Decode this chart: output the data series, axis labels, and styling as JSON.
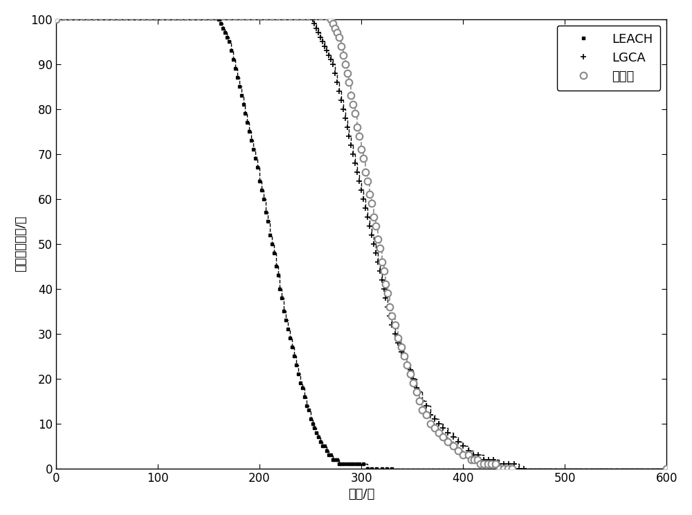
{
  "xlabel": "轮数/轮",
  "ylabel": "存活节点数目/个",
  "xlim": [
    0,
    600
  ],
  "ylim": [
    0,
    100
  ],
  "xticks": [
    0,
    100,
    200,
    300,
    400,
    500,
    600
  ],
  "yticks": [
    0,
    10,
    20,
    30,
    40,
    50,
    60,
    70,
    80,
    90,
    100
  ],
  "legend_labels": [
    "LEACH",
    "LGCA",
    "本发明"
  ],
  "leach_color": "#000000",
  "lgca_color": "#000000",
  "invention_color": "#888888",
  "bg_color": "#ffffff",
  "leach_x": [
    0,
    160,
    162,
    164,
    166,
    168,
    170,
    172,
    174,
    176,
    178,
    180,
    182,
    184,
    186,
    188,
    190,
    192,
    194,
    196,
    198,
    200,
    202,
    204,
    206,
    208,
    210,
    212,
    214,
    216,
    218,
    220,
    222,
    224,
    226,
    228,
    230,
    232,
    234,
    236,
    238,
    240,
    242,
    244,
    246,
    248,
    250,
    252,
    254,
    256,
    258,
    260,
    262,
    264,
    266,
    268,
    270,
    272,
    274,
    276,
    278,
    280,
    283,
    286,
    289,
    292,
    295,
    298,
    302,
    306,
    310,
    315,
    320,
    325,
    330,
    600
  ],
  "leach_y": [
    100,
    100,
    99,
    98,
    97,
    96,
    95,
    93,
    91,
    89,
    87,
    85,
    83,
    81,
    79,
    77,
    75,
    73,
    71,
    69,
    67,
    64,
    62,
    60,
    57,
    55,
    52,
    50,
    48,
    45,
    43,
    40,
    38,
    35,
    33,
    31,
    29,
    27,
    25,
    23,
    21,
    19,
    18,
    16,
    14,
    13,
    11,
    10,
    9,
    8,
    7,
    6,
    5,
    5,
    4,
    3,
    3,
    2,
    2,
    2,
    1,
    1,
    1,
    1,
    1,
    1,
    1,
    1,
    1,
    0,
    0,
    0,
    0,
    0,
    0,
    0
  ],
  "lgca_x": [
    0,
    252,
    254,
    256,
    258,
    260,
    262,
    264,
    266,
    268,
    270,
    272,
    274,
    276,
    278,
    280,
    282,
    284,
    286,
    288,
    290,
    292,
    294,
    296,
    298,
    300,
    302,
    304,
    306,
    308,
    310,
    312,
    314,
    316,
    318,
    320,
    322,
    324,
    326,
    328,
    330,
    333,
    336,
    339,
    342,
    345,
    348,
    351,
    354,
    357,
    360,
    364,
    368,
    372,
    376,
    380,
    385,
    390,
    395,
    400,
    405,
    410,
    415,
    420,
    425,
    430,
    435,
    440,
    445,
    450,
    455,
    460,
    600
  ],
  "lgca_y": [
    100,
    100,
    99,
    98,
    97,
    96,
    95,
    94,
    93,
    92,
    91,
    90,
    88,
    86,
    84,
    82,
    80,
    78,
    76,
    74,
    72,
    70,
    68,
    66,
    64,
    62,
    60,
    58,
    56,
    54,
    52,
    50,
    48,
    46,
    44,
    42,
    40,
    38,
    36,
    34,
    32,
    30,
    28,
    26,
    25,
    23,
    22,
    20,
    18,
    17,
    15,
    14,
    12,
    11,
    10,
    9,
    8,
    7,
    6,
    5,
    4,
    3,
    3,
    2,
    2,
    2,
    1,
    1,
    1,
    1,
    0,
    0,
    0
  ],
  "inv_x": [
    0,
    270,
    272,
    274,
    276,
    278,
    280,
    282,
    284,
    286,
    288,
    290,
    292,
    294,
    296,
    298,
    300,
    302,
    304,
    306,
    308,
    310,
    312,
    314,
    316,
    318,
    320,
    322,
    324,
    326,
    328,
    330,
    333,
    336,
    339,
    342,
    345,
    348,
    351,
    354,
    357,
    360,
    364,
    368,
    372,
    376,
    380,
    385,
    390,
    395,
    400,
    405,
    408,
    411,
    414,
    417,
    420,
    424,
    428,
    432,
    436,
    440,
    444,
    448,
    600
  ],
  "inv_y": [
    100,
    100,
    99,
    98,
    97,
    96,
    94,
    92,
    90,
    88,
    86,
    83,
    81,
    79,
    76,
    74,
    71,
    69,
    66,
    64,
    61,
    59,
    56,
    54,
    51,
    49,
    46,
    44,
    41,
    39,
    36,
    34,
    32,
    29,
    27,
    25,
    23,
    21,
    19,
    17,
    15,
    13,
    12,
    10,
    9,
    8,
    7,
    6,
    5,
    4,
    3,
    3,
    2,
    2,
    2,
    1,
    1,
    1,
    1,
    1,
    0,
    0,
    0,
    0,
    0
  ]
}
